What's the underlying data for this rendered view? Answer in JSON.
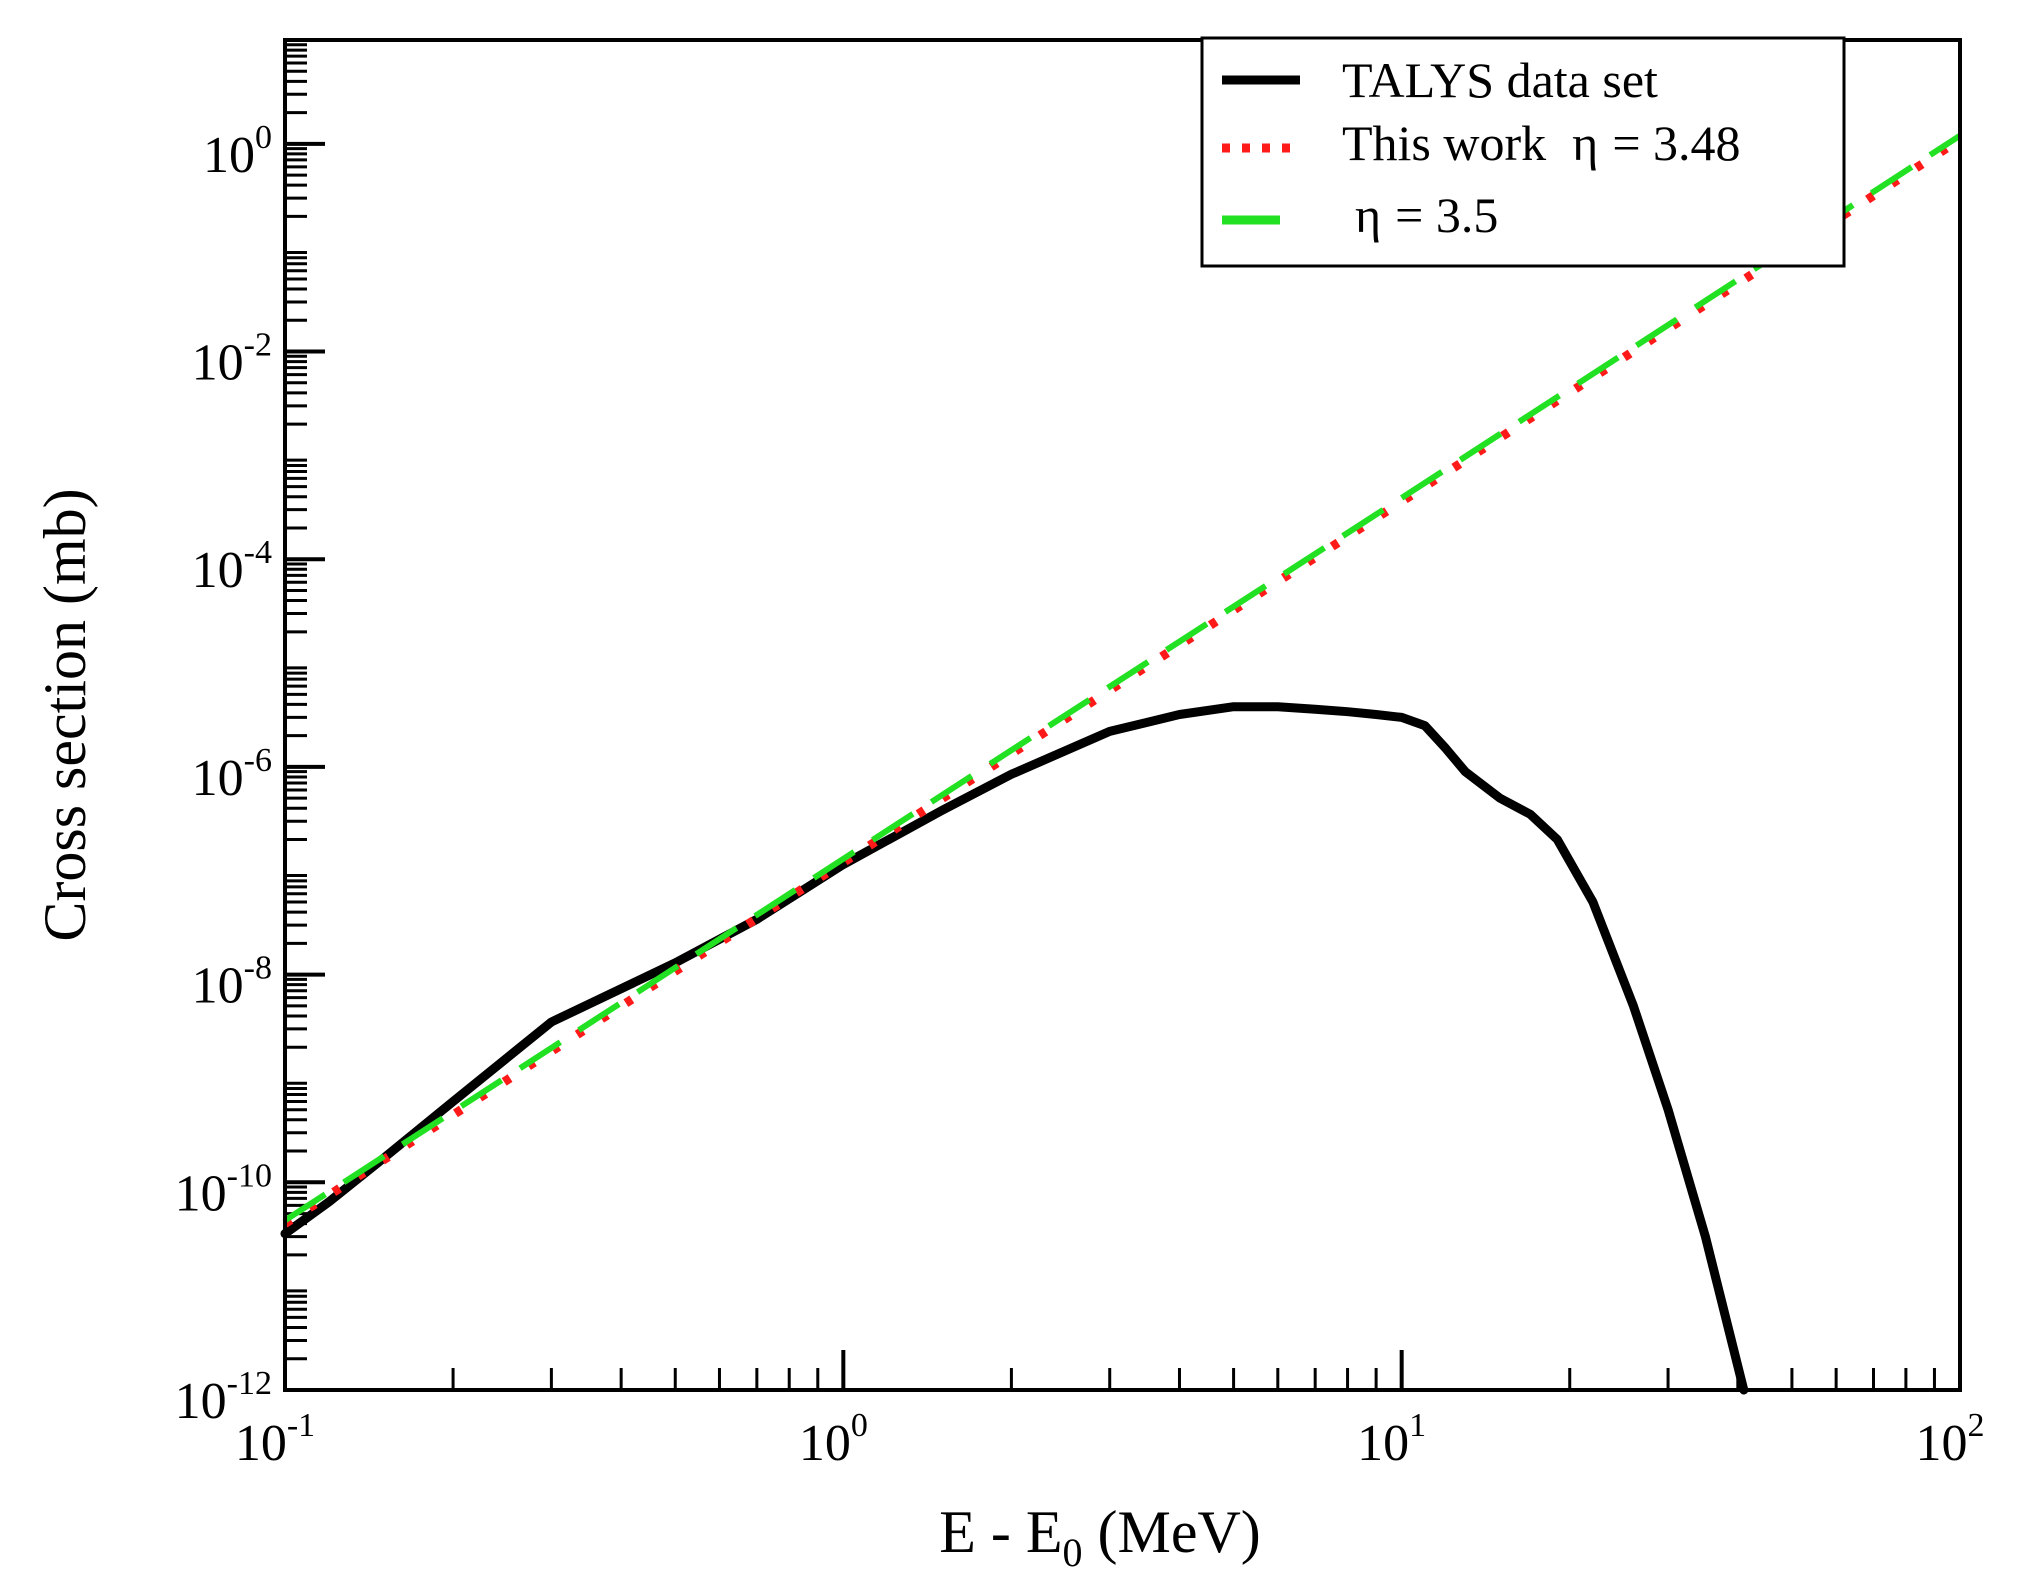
{
  "chart_data": {
    "type": "line",
    "xscale": "log",
    "yscale": "log",
    "xlim": [
      0.1,
      100
    ],
    "ylim": [
      1e-12,
      10
    ],
    "xlabel": {
      "main": "E - E",
      "sub": "0",
      "unit": " (MeV)"
    },
    "ylabel": "Cross section (mb)",
    "x_ticks": [
      {
        "base": "10",
        "exp": "-1",
        "value": 0.1
      },
      {
        "base": "10",
        "exp": "0",
        "value": 1
      },
      {
        "base": "10",
        "exp": "1",
        "value": 10
      },
      {
        "base": "10",
        "exp": "2",
        "value": 100
      }
    ],
    "y_ticks": [
      {
        "base": "10",
        "exp": "-12",
        "value": 1e-12
      },
      {
        "base": "10",
        "exp": "-10",
        "value": 1e-10
      },
      {
        "base": "10",
        "exp": "-8",
        "value": 1e-08
      },
      {
        "base": "10",
        "exp": "-6",
        "value": 1e-06
      },
      {
        "base": "10",
        "exp": "-4",
        "value": 0.0001
      },
      {
        "base": "10",
        "exp": "-2",
        "value": 0.01
      },
      {
        "base": "10",
        "exp": "0",
        "value": 1
      }
    ],
    "legend_position": "top-right",
    "series": [
      {
        "name": "TALYS data set",
        "legend_parts": [
          "TALYS data set"
        ],
        "color": "#000000",
        "style": "solid",
        "x": [
          0.1,
          0.12,
          0.15,
          0.2,
          0.3,
          0.5,
          0.7,
          1.0,
          1.5,
          2.0,
          3.0,
          4.0,
          5.0,
          6.0,
          7.0,
          8.0,
          9.0,
          10.0,
          11.0,
          12.0,
          13.0,
          15.0,
          17.0,
          19.0,
          22.0,
          26.0,
          30.0,
          35.0,
          41.0
        ],
        "y": [
          3.2e-11,
          6.5e-11,
          1.7e-10,
          6e-10,
          3.5e-09,
          1.3e-08,
          3.4e-08,
          1.15e-07,
          3.8e-07,
          8.5e-07,
          2.2e-06,
          3.2e-06,
          3.8e-06,
          3.8e-06,
          3.6e-06,
          3.4e-06,
          3.2e-06,
          3e-06,
          2.5e-06,
          1.5e-06,
          9e-07,
          5e-07,
          3.5e-07,
          2e-07,
          5e-08,
          5e-09,
          5e-10,
          3e-11,
          1e-12
        ]
      },
      {
        "name": "This work η = 3.48",
        "legend_parts": [
          "This work",
          "η",
          "= 3.48"
        ],
        "color": "#ff1a1a",
        "style": "dotted",
        "x": [
          0.1,
          1,
          10,
          100
        ],
        "y": [
          4e-11,
          1.2e-07,
          0.00036,
          1.1
        ]
      },
      {
        "name": "η = 3.5",
        "legend_parts": [
          "η",
          "= 3.5"
        ],
        "color": "#22e022",
        "style": "dashed",
        "x": [
          0.1,
          1,
          10,
          100
        ],
        "y": [
          4.3e-11,
          1.3e-07,
          0.00039,
          1.2
        ]
      }
    ]
  }
}
